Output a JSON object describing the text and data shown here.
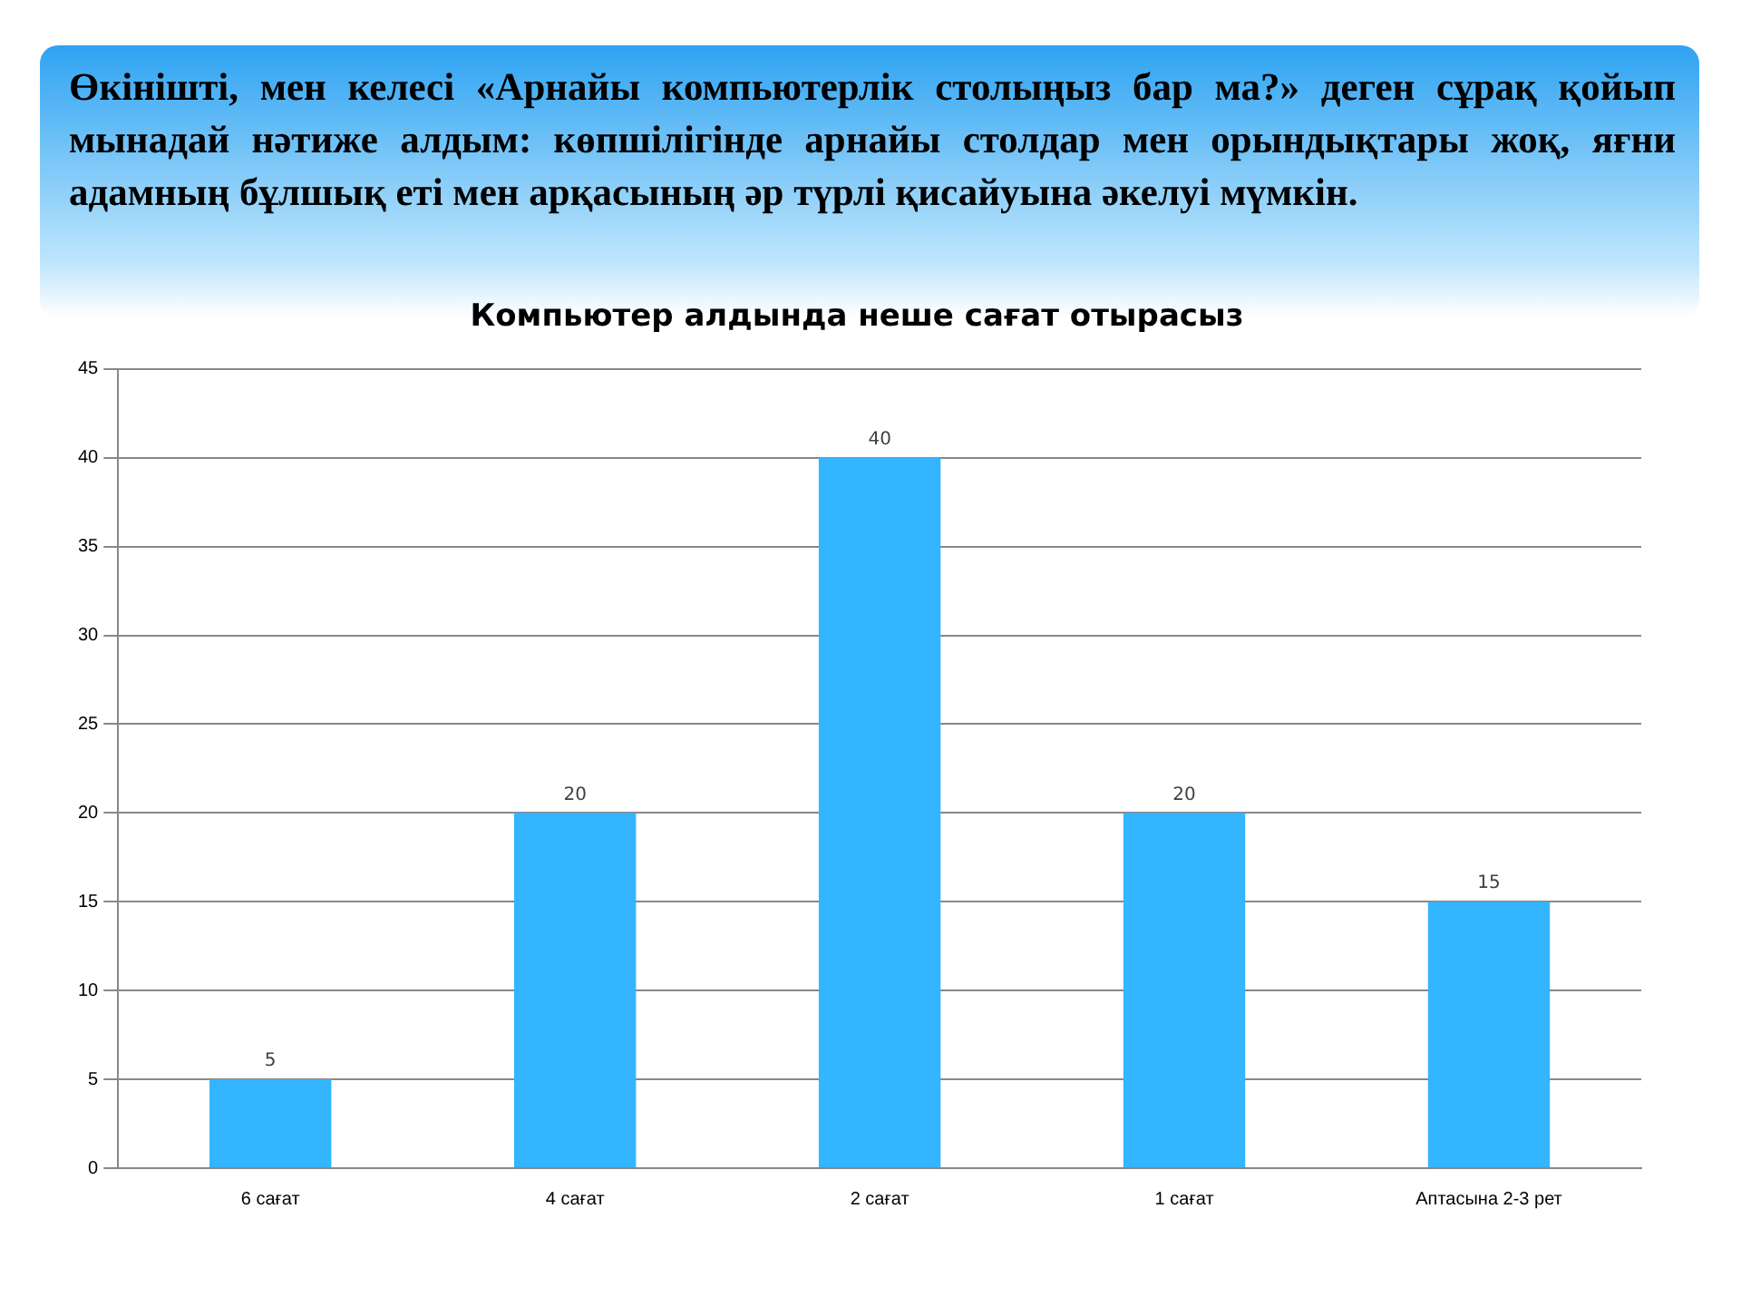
{
  "chart_data": {
    "type": "bar",
    "title": "Компьютер алдында неше сағат отырасыз",
    "annotations": [
      "Өкінішті, мен келесі «Арнайы компьютерлік столыңыз бар ма?» деген сұрақ қойып мынадай нәтиже алдым: көпшілігінде арнайы  столдар мен орындықтары жоқ, яғни адамның бұлшық еті мен арқасының әр түрлі қисайуына әкелуі мүмкін."
    ],
    "categories": [
      "6 сағат",
      "4 сағат",
      "2 сағат",
      "1 сағат",
      "Аптасына 2-3 рет"
    ],
    "values": [
      5,
      20,
      40,
      20,
      15
    ],
    "color": "#33b5ff",
    "ylim": [
      0,
      45
    ],
    "yticks": [
      0,
      5,
      10,
      15,
      20,
      25,
      30,
      35,
      40,
      45
    ],
    "grid": "y",
    "data_labels": true
  }
}
